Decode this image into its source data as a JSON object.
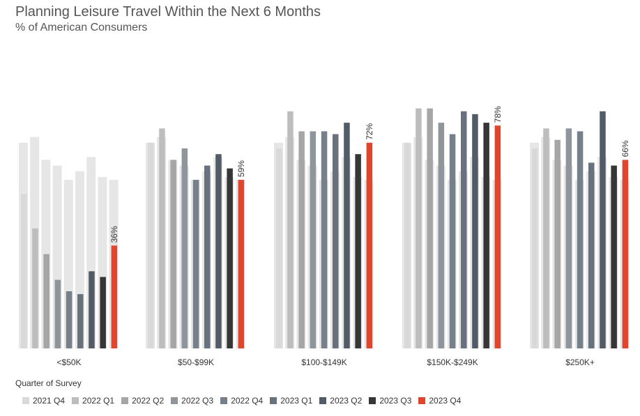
{
  "chart_data": {
    "type": "bar",
    "title": "Planning Leisure Travel Within the Next 6 Months",
    "subtitle": "% of American Consumers",
    "legend_title": "Quarter of Survey",
    "legend_position": "bottom",
    "categories": [
      "<$50K",
      "$50-$99K",
      "$100-$149K",
      "$150K-$249K",
      "$250K+"
    ],
    "ylim": [
      0,
      100
    ],
    "grid": false,
    "label_suffix": "%",
    "series": [
      {
        "name": "2021 Q4",
        "color": "#d9d9d9",
        "values": [
          54,
          72,
          70,
          72,
          70
        ]
      },
      {
        "name": "2022 Q1",
        "color": "#bdbdbd",
        "values": [
          42,
          77,
          83,
          84,
          77
        ]
      },
      {
        "name": "2022 Q2",
        "color": "#a6a6a6",
        "values": [
          33,
          66,
          76,
          84,
          73
        ]
      },
      {
        "name": "2022 Q3",
        "color": "#8e969b",
        "values": [
          24,
          70,
          76,
          79,
          77
        ]
      },
      {
        "name": "2022 Q4",
        "color": "#76808a",
        "values": [
          20,
          59,
          76,
          75,
          76
        ]
      },
      {
        "name": "2023 Q1",
        "color": "#67727c",
        "values": [
          19,
          64,
          75,
          83,
          65
        ]
      },
      {
        "name": "2023 Q2",
        "color": "#525c66",
        "values": [
          27,
          68,
          79,
          82,
          83
        ]
      },
      {
        "name": "2023 Q3",
        "color": "#363636",
        "values": [
          25,
          63,
          68,
          79,
          64
        ]
      },
      {
        "name": "2023 Q4",
        "color": "#e0452e",
        "values": [
          36,
          59,
          72,
          78,
          66
        ],
        "labels": [
          "36%",
          "59%",
          "72%",
          "78%",
          "66%"
        ]
      }
    ],
    "background_series": [
      {
        "name": "<$50K",
        "values": [
          72,
          74,
          66,
          64,
          59,
          62,
          67,
          60,
          59
        ]
      },
      {
        "name": "$50-$99K",
        "values": [
          72,
          74,
          66,
          64,
          59,
          62,
          67,
          60,
          59
        ]
      },
      {
        "name": "$100-$149K",
        "values": [
          72,
          74,
          66,
          64,
          59,
          62,
          67,
          60,
          59
        ]
      },
      {
        "name": "$150K-$249K",
        "values": [
          72,
          74,
          66,
          64,
          59,
          62,
          67,
          60,
          59
        ]
      },
      {
        "name": "$250K+",
        "values": [
          72,
          74,
          66,
          64,
          59,
          62,
          67,
          60,
          59
        ]
      }
    ],
    "background_color": "#e6e6e6"
  }
}
